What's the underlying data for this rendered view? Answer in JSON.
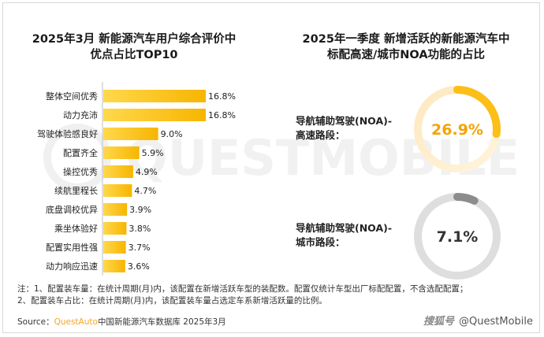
{
  "left_title_line1": "2025年3月 新能源汽车用户综合评价中",
  "left_title_line2": "优点占比TOP10",
  "right_title_line1": "2025年一季度 新增活跃的新能源汽车中",
  "right_title_line2": "标配高速/城市NOA功能的占比",
  "watermark": "QUESTMOBILE",
  "note_line1": "注：1、配置装车量：在统计周期(月)内，该配置在新增活跃车型的装配数。配置仅统计车型出厂标配配置，不含选配配置；",
  "note_line2": "2、配置装车占比：在统计周期(月)内，该配置装车量占选定车系新增活跃量的比例。",
  "source_label": "Source：",
  "source_brand": "QuestAuto",
  "source_text": "中国新能源汽车数据库 2025年3月",
  "credit_logo": "搜狐号",
  "credit_text": "@QuestMobile",
  "colors": {
    "bar_light": "#ffd84d",
    "bar_dark": "#f7b500",
    "donut_accent": "#fbbf17",
    "donut_track_orange": "#fde9c0",
    "donut_track_gray": "#dedede",
    "donut_accent_gray": "#8c8c8c"
  },
  "chart_data": [
    {
      "type": "bar",
      "orientation": "horizontal",
      "title": "2025年3月 新能源汽车用户综合评价中优点占比TOP10",
      "categories": [
        "整体空间优秀",
        "动力充沛",
        "驾驶体验感良好",
        "配置齐全",
        "操控优秀",
        "续航里程长",
        "底盘调校优异",
        "乘坐体验好",
        "配置实用性强",
        "动力响应迅速"
      ],
      "values": [
        16.8,
        16.8,
        9.0,
        5.9,
        4.9,
        4.7,
        3.9,
        3.8,
        3.7,
        3.6
      ],
      "labels": [
        "16.8%",
        "16.8%",
        "9.0%",
        "5.9%",
        "4.9%",
        "4.7%",
        "3.9%",
        "3.8%",
        "3.7%",
        "3.6%"
      ],
      "unit": "%"
    },
    {
      "type": "pie",
      "variant": "donut",
      "title": "2025年一季度 新增活跃的新能源汽车中标配高速/城市NOA功能的占比",
      "items": [
        {
          "label_line1": "导航辅助驾驶(NOA)-",
          "label_line2": "高速路段：",
          "value": 26.9,
          "display": "26.9%",
          "style": "orange"
        },
        {
          "label_line1": "导航辅助驾驶(NOA)-",
          "label_line2": "城市路段：",
          "value": 7.1,
          "display": "7.1%",
          "style": "gray"
        }
      ]
    }
  ]
}
